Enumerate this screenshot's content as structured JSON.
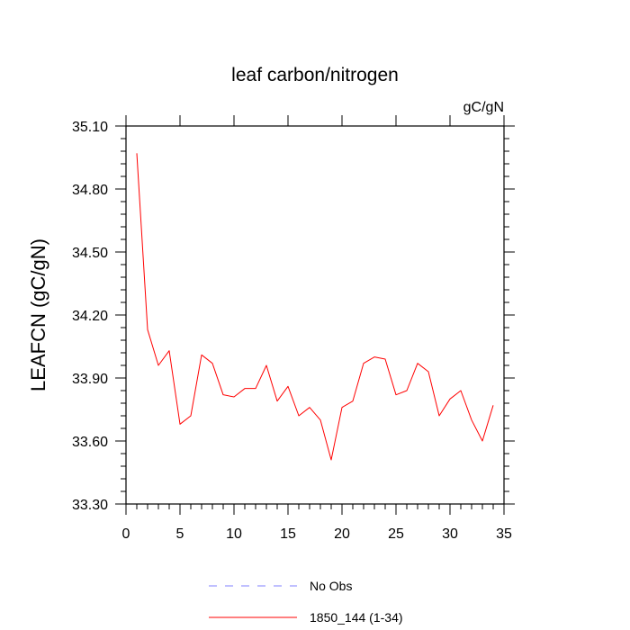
{
  "chart_data": {
    "type": "line",
    "title": "leaf carbon/nitrogen",
    "units": "gC/gN",
    "ylabel": "LEAFCN  (gC/gN)",
    "xlabel": "",
    "xlim": [
      0,
      35
    ],
    "ylim": [
      33.3,
      35.1
    ],
    "x_ticks": [
      0,
      5,
      10,
      15,
      20,
      25,
      30,
      35
    ],
    "y_ticks": [
      "33.30",
      "33.60",
      "33.90",
      "34.20",
      "34.50",
      "34.80",
      "35.10"
    ],
    "grid": false,
    "legend_position": "bottom",
    "series": [
      {
        "name": "1850_144 (1-34)",
        "color": "#ff0000",
        "dash": "solid",
        "x": [
          1,
          2,
          3,
          4,
          5,
          6,
          7,
          8,
          9,
          10,
          11,
          12,
          13,
          14,
          15,
          16,
          17,
          18,
          19,
          20,
          21,
          22,
          23,
          24,
          25,
          26,
          27,
          28,
          29,
          30,
          31,
          32,
          33,
          34
        ],
        "y": [
          34.97,
          34.13,
          33.96,
          34.03,
          33.68,
          33.72,
          34.01,
          33.97,
          33.82,
          33.81,
          33.85,
          33.85,
          33.96,
          33.79,
          33.86,
          33.72,
          33.76,
          33.7,
          33.51,
          33.76,
          33.79,
          33.97,
          34.0,
          33.99,
          33.82,
          33.84,
          33.97,
          33.93,
          33.72,
          33.8,
          33.84,
          33.7,
          33.6,
          33.77
        ]
      }
    ],
    "legend": [
      {
        "label": "No Obs",
        "color": "#8080ff",
        "dash": "dashed"
      },
      {
        "label": "1850_144 (1-34)",
        "color": "#ff0000",
        "dash": "solid"
      }
    ]
  }
}
